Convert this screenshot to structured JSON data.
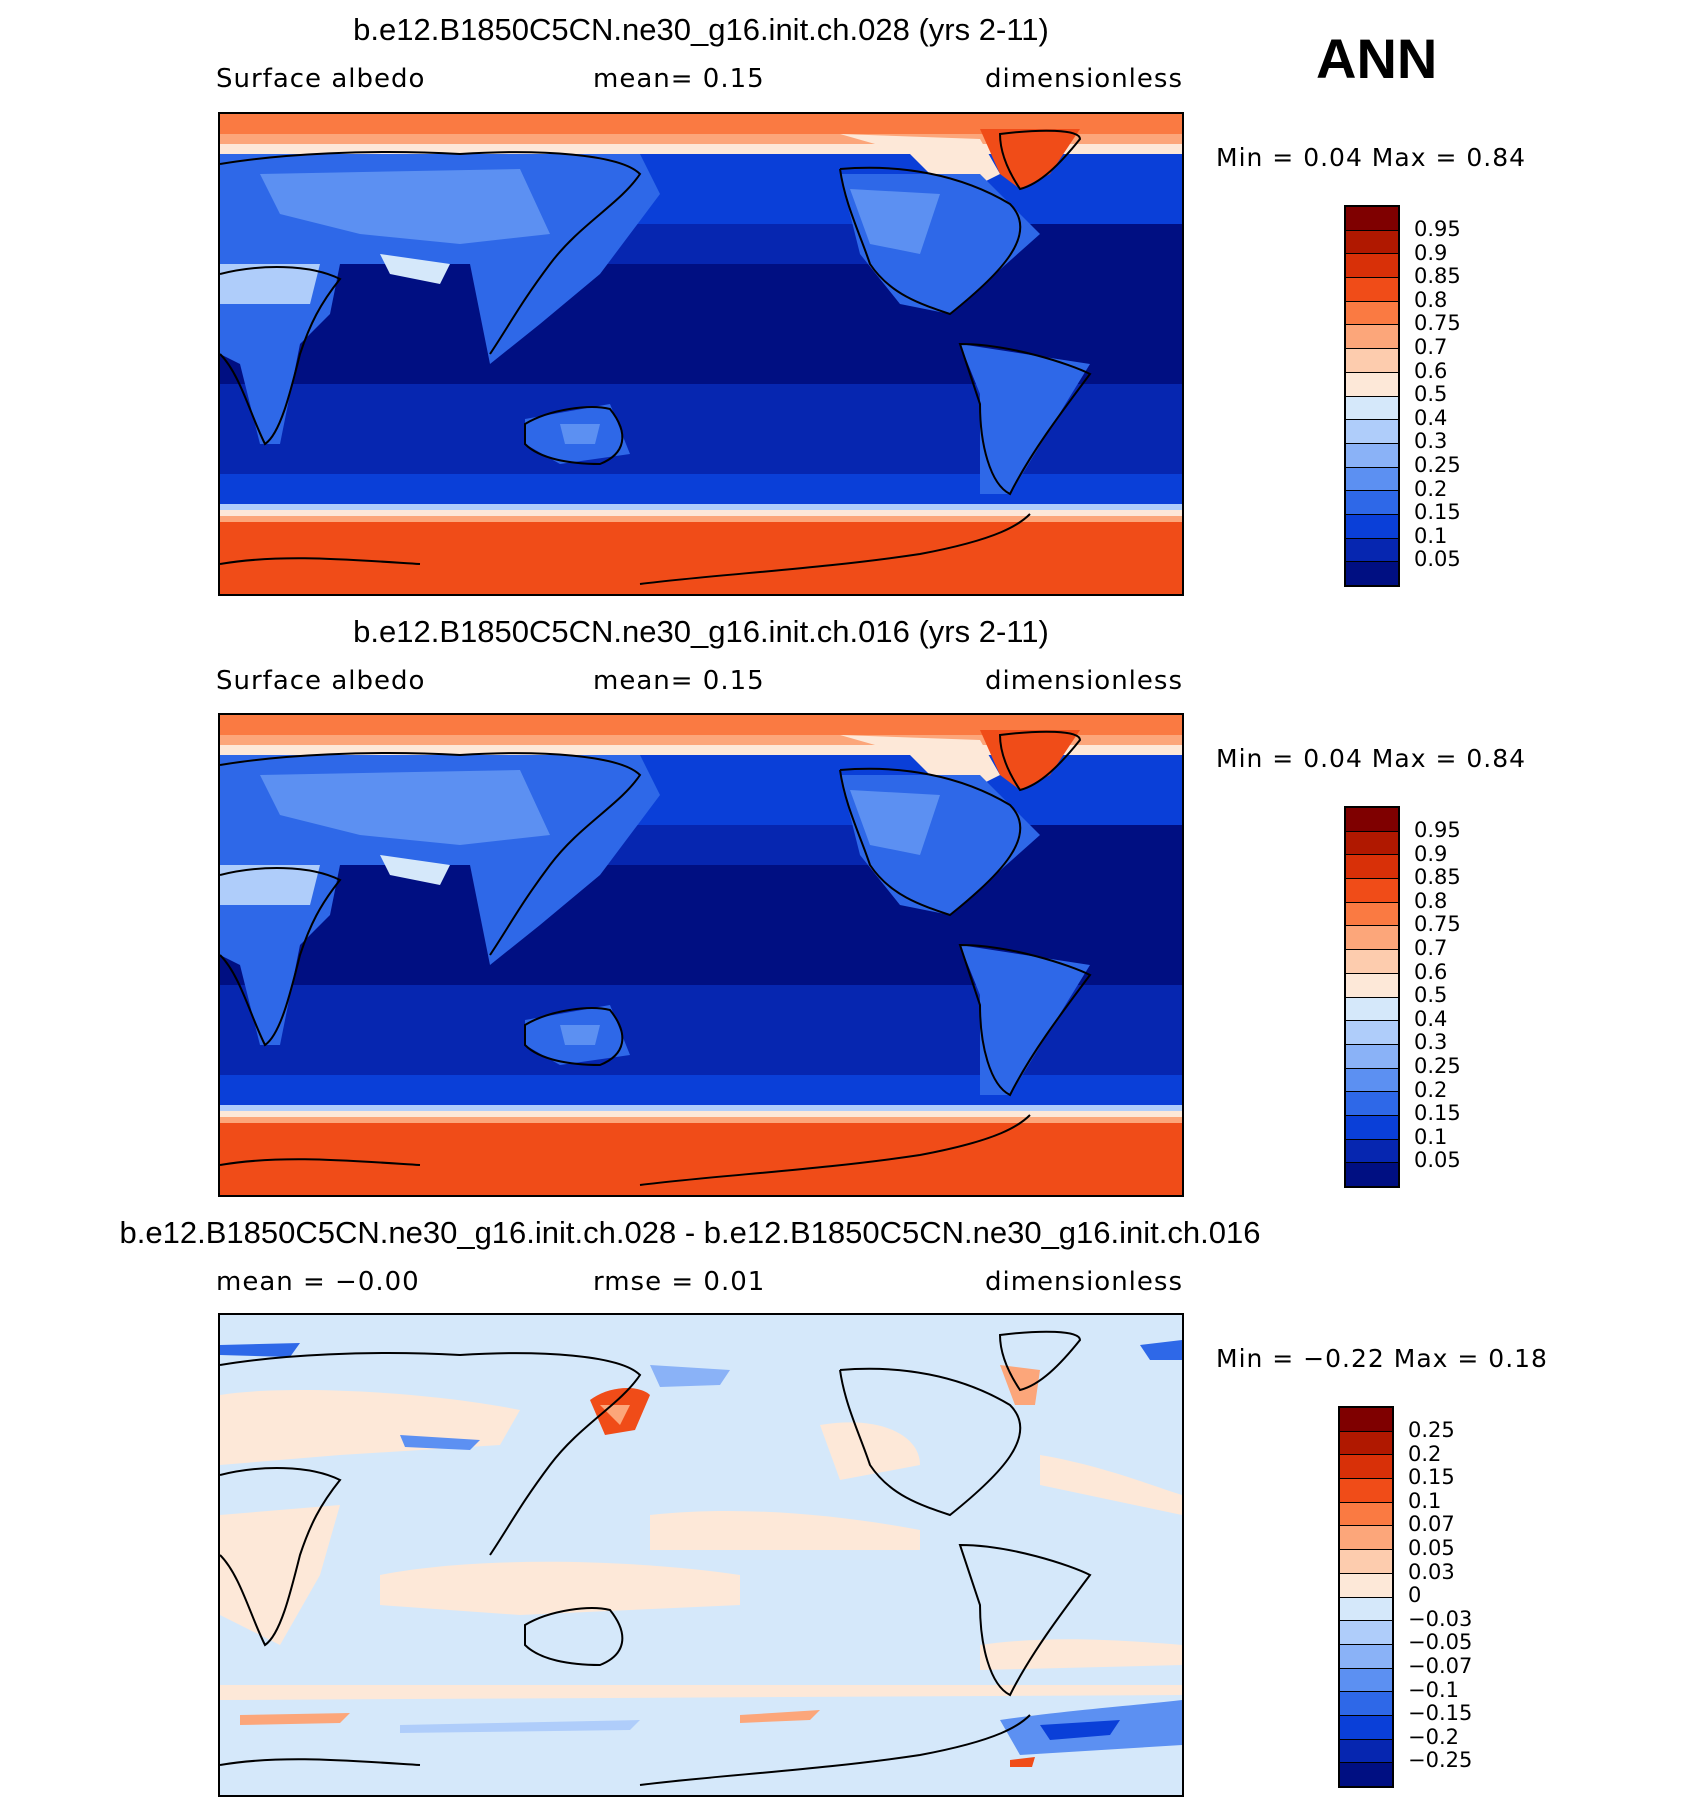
{
  "season": "ANN",
  "panels": [
    {
      "title": "b.e12.B1850C5CN.ne30_g16.init.ch.028 (yrs 2-11)",
      "left": "Surface albedo",
      "center": "mean=    0.15",
      "right": "dimensionless",
      "minmax": "Min =    0.04  Max =    0.84"
    },
    {
      "title": "b.e12.B1850C5CN.ne30_g16.init.ch.016 (yrs 2-11)",
      "left": "Surface albedo",
      "center": "mean=    0.15",
      "right": "dimensionless",
      "minmax": "Min =    0.04  Max =    0.84"
    },
    {
      "title": "b.e12.B1850C5CN.ne30_g16.init.ch.028 - b.e12.B1850C5CN.ne30_g16.init.ch.016",
      "left": "mean =   −0.00",
      "center": "rmse =    0.01",
      "right": "dimensionless",
      "minmax": "Min =   −0.22  Max =    0.18"
    }
  ],
  "chart_data": [
    {
      "type": "heatmap",
      "title": "b.e12.B1850C5CN.ne30_g16.init.ch.028 (yrs 2-11)",
      "variable": "Surface albedo",
      "units": "dimensionless",
      "mean": 0.15,
      "min": 0.04,
      "max": 0.84,
      "contour_levels": [
        "0.95",
        "0.9",
        "0.85",
        "0.8",
        "0.75",
        "0.7",
        "0.6",
        "0.5",
        "0.4",
        "0.3",
        "0.25",
        "0.2",
        "0.15",
        "0.1",
        "0.05"
      ],
      "colors": [
        "#7f0000",
        "#b01800",
        "#d83008",
        "#f04c18",
        "#fa7a42",
        "#fca67a",
        "#fdccae",
        "#fde8d8",
        "#d5e8fa",
        "#afcdfa",
        "#8ab2f7",
        "#5c90f2",
        "#2e68e8",
        "#0a3fd8",
        "#0626b0",
        "#000f82"
      ]
    },
    {
      "type": "heatmap",
      "title": "b.e12.B1850C5CN.ne30_g16.init.ch.016 (yrs 2-11)",
      "variable": "Surface albedo",
      "units": "dimensionless",
      "mean": 0.15,
      "min": 0.04,
      "max": 0.84,
      "contour_levels": [
        "0.95",
        "0.9",
        "0.85",
        "0.8",
        "0.75",
        "0.7",
        "0.6",
        "0.5",
        "0.4",
        "0.3",
        "0.25",
        "0.2",
        "0.15",
        "0.1",
        "0.05"
      ],
      "colors": [
        "#7f0000",
        "#b01800",
        "#d83008",
        "#f04c18",
        "#fa7a42",
        "#fca67a",
        "#fdccae",
        "#fde8d8",
        "#d5e8fa",
        "#afcdfa",
        "#8ab2f7",
        "#5c90f2",
        "#2e68e8",
        "#0a3fd8",
        "#0626b0",
        "#000f82"
      ]
    },
    {
      "type": "heatmap",
      "title": "b.e12.B1850C5CN.ne30_g16.init.ch.028 - b.e12.B1850C5CN.ne30_g16.init.ch.016",
      "units": "dimensionless",
      "mean": -0.0,
      "rmse": 0.01,
      "min": -0.22,
      "max": 0.18,
      "contour_levels": [
        "0.25",
        "0.2",
        "0.15",
        "0.1",
        "0.07",
        "0.05",
        "0.03",
        "0",
        "−0.03",
        "−0.05",
        "−0.07",
        "−0.1",
        "−0.15",
        "−0.2",
        "−0.25"
      ],
      "colors": [
        "#7f0000",
        "#b01800",
        "#d83008",
        "#f04c18",
        "#fa7a42",
        "#fca67a",
        "#fdccae",
        "#fde8d8",
        "#d5e8fa",
        "#afcdfa",
        "#8ab2f7",
        "#5c90f2",
        "#2e68e8",
        "#0a3fd8",
        "#0626b0",
        "#000f82"
      ]
    }
  ]
}
